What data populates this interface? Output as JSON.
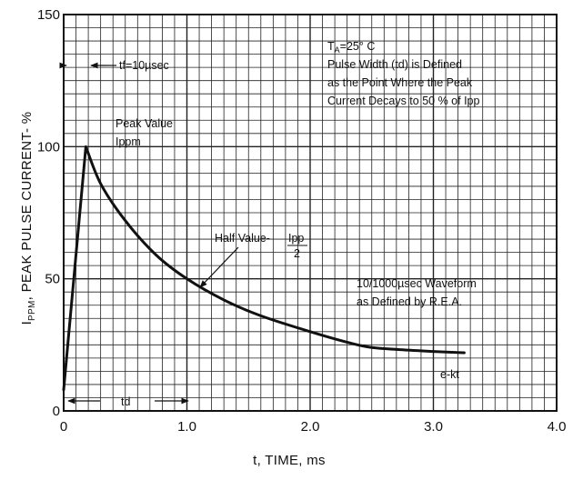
{
  "chart_data": {
    "type": "line",
    "xlabel": "t, TIME, ms",
    "ylabel_prefix": "I",
    "ylabel_sub": "PPM",
    "ylabel_rest": ", PEAK PULSE CURRENT- %",
    "xlim": [
      0,
      4.0
    ],
    "ylim": [
      0,
      150
    ],
    "x_ticks": [
      "0",
      "1.0",
      "2.0",
      "3.0",
      "4.0"
    ],
    "y_ticks": [
      "0",
      "50",
      "100",
      "150"
    ],
    "grid": true,
    "series": [
      {
        "x": [
          0,
          0.18,
          0.3,
          0.5,
          0.75,
          1.0,
          1.3,
          1.6,
          2.0,
          2.3,
          2.5,
          2.8,
          3.0,
          3.25
        ],
        "y": [
          8,
          100,
          86,
          72,
          59,
          50,
          42,
          36,
          30,
          26,
          24,
          23,
          22.5,
          22
        ]
      }
    ],
    "annotations": {
      "conditions": {
        "ta_prefix": "T",
        "ta_sub": "A",
        "ta_rest": "=25° C",
        "line2": "Pulse Width (td) is Defined",
        "line3": "as the Point Where the Peak",
        "line4": "Current Decays to 50 % of Ipp"
      },
      "tf_label": "tf=10µsec",
      "peak_line1": "Peak Value",
      "peak_line2": "Ippm",
      "half_value_text": "Half Value-",
      "half_value_num": "Ipp",
      "half_value_den": "2",
      "waveform_line1": "10/1000µsec Waveform",
      "waveform_line2": "as Defined by R.E.A.",
      "ekt_label": "e-kt",
      "td_label": "td"
    }
  }
}
